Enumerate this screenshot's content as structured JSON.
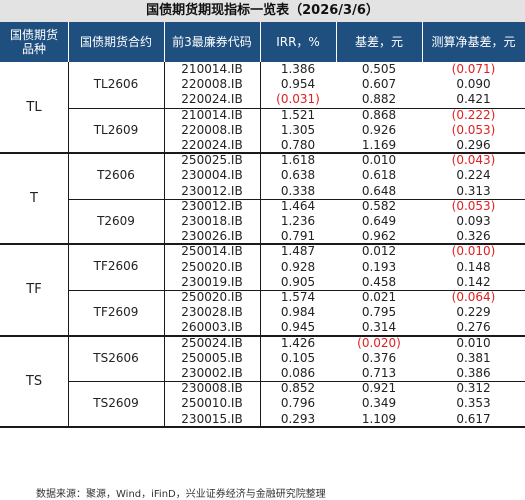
{
  "title": "国债期货期现指标一览表（2026/3/6）",
  "headers": [
    "国债期货\n品种",
    "国债期货合约",
    "前3最廉券代码",
    "IRR，%",
    "基差，元",
    "测算净基差，元"
  ],
  "groups": [
    {
      "product": "TL",
      "contracts": [
        {
          "name": "TL2606",
          "rows": [
            {
              "bond": "210014.IB",
              "irr": "1.386",
              "basis": "0.505",
              "net": "(0.071)"
            },
            {
              "bond": "220008.IB",
              "irr": "0.954",
              "basis": "0.607",
              "net": "0.090"
            },
            {
              "bond": "220024.IB",
              "irr": "(0.031)",
              "basis": "0.882",
              "net": "0.421"
            }
          ]
        },
        {
          "name": "TL2609",
          "rows": [
            {
              "bond": "210014.IB",
              "irr": "1.521",
              "basis": "0.868",
              "net": "(0.222)"
            },
            {
              "bond": "220008.IB",
              "irr": "1.305",
              "basis": "0.926",
              "net": "(0.053)"
            },
            {
              "bond": "220024.IB",
              "irr": "0.780",
              "basis": "1.169",
              "net": "0.296"
            }
          ]
        }
      ]
    },
    {
      "product": "T",
      "contracts": [
        {
          "name": "T2606",
          "rows": [
            {
              "bond": "250025.IB",
              "irr": "1.618",
              "basis": "0.010",
              "net": "(0.043)"
            },
            {
              "bond": "230004.IB",
              "irr": "0.638",
              "basis": "0.618",
              "net": "0.224"
            },
            {
              "bond": "230012.IB",
              "irr": "0.338",
              "basis": "0.648",
              "net": "0.313"
            }
          ]
        },
        {
          "name": "T2609",
          "rows": [
            {
              "bond": "230012.IB",
              "irr": "1.464",
              "basis": "0.582",
              "net": "(0.053)"
            },
            {
              "bond": "230018.IB",
              "irr": "1.236",
              "basis": "0.649",
              "net": "0.093"
            },
            {
              "bond": "230026.IB",
              "irr": "0.791",
              "basis": "0.962",
              "net": "0.326"
            }
          ]
        }
      ]
    },
    {
      "product": "TF",
      "contracts": [
        {
          "name": "TF2606",
          "rows": [
            {
              "bond": "250014.IB",
              "irr": "1.487",
              "basis": "0.012",
              "net": "(0.010)"
            },
            {
              "bond": "250020.IB",
              "irr": "0.928",
              "basis": "0.193",
              "net": "0.148"
            },
            {
              "bond": "230019.IB",
              "irr": "0.905",
              "basis": "0.458",
              "net": "0.142"
            }
          ]
        },
        {
          "name": "TF2609",
          "rows": [
            {
              "bond": "250020.IB",
              "irr": "1.574",
              "basis": "0.021",
              "net": "(0.064)"
            },
            {
              "bond": "230028.IB",
              "irr": "0.984",
              "basis": "0.795",
              "net": "0.229"
            },
            {
              "bond": "260003.IB",
              "irr": "0.945",
              "basis": "0.314",
              "net": "0.276"
            }
          ]
        }
      ]
    },
    {
      "product": "TS",
      "contracts": [
        {
          "name": "TS2606",
          "rows": [
            {
              "bond": "250024.IB",
              "irr": "1.426",
              "basis": "(0.020)",
              "net": "0.010"
            },
            {
              "bond": "250005.IB",
              "irr": "0.105",
              "basis": "0.376",
              "net": "0.381"
            },
            {
              "bond": "230002.IB",
              "irr": "0.086",
              "basis": "0.713",
              "net": "0.386"
            }
          ]
        },
        {
          "name": "TS2609",
          "rows": [
            {
              "bond": "230008.IB",
              "irr": "0.852",
              "basis": "0.921",
              "net": "0.312"
            },
            {
              "bond": "250010.IB",
              "irr": "0.796",
              "basis": "0.349",
              "net": "0.353"
            },
            {
              "bond": "230015.IB",
              "irr": "0.293",
              "basis": "1.109",
              "net": "0.617"
            }
          ]
        }
      ]
    }
  ],
  "source": "数据来源：聚源，Wind，iFinD，兴业证券经济与金融研究院整理",
  "colors": {
    "header_bg": "#1f4f7f",
    "title_bg": "#e3e3e3",
    "negative": "#e02020"
  }
}
